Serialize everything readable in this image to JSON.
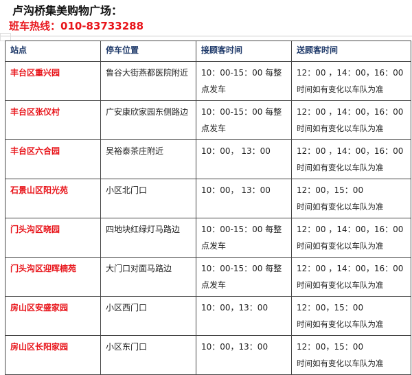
{
  "title": "卢沟桥集美购物广场：",
  "hotline": "班车热线：010-83733288",
  "headers": [
    "站点",
    "停车位置",
    "接顾客时间",
    "送顾客时间"
  ],
  "rows": [
    {
      "station": "丰台区重兴园",
      "location": "鲁谷大街燕都医院附近",
      "pickup": "10：00-15：00 每整点发车",
      "dropoff": "12：00 ，14：00，16：00",
      "note": "时间如有变化以车队为准"
    },
    {
      "station": "丰台区张仪村",
      "location": "广安康欣家园东侧路边",
      "pickup": "10：00-15：00 每整点发车",
      "dropoff": "12：00 ，14：00，16：00",
      "note": "时间如有变化以车队为准"
    },
    {
      "station": "丰台区六合园",
      "location": "吴裕泰茶庄附近",
      "pickup": "10：00， 13：00",
      "dropoff": "12：00 ，14：00，16：00",
      "note": "时间如有变化以车队为准"
    },
    {
      "station": "石景山区阳光苑",
      "location": "小区北门口",
      "pickup": "10：00， 13：00",
      "dropoff": "12：00，15：00",
      "note": "时间如有变化以车队为准"
    },
    {
      "station": "门头沟区晓园",
      "location": "四地块红绿灯马路边",
      "pickup": "10：00-15：00 每整点发车",
      "dropoff": "12：00 ，14：00，16：00",
      "note": "时间如有变化以车队为准"
    },
    {
      "station": "门头沟区迎晖楠苑",
      "location": "大门口对面马路边",
      "pickup": " 10：00-15：00 每整点发车",
      "dropoff": "12：00 ，14：00，16：00",
      "note": "时间如有变化以车队为准"
    },
    {
      "station": "房山区安盛家园",
      "location": "小区西门口",
      "pickup": "10：00，13：00",
      "dropoff": "12：00，15：00",
      "note": "时间如有变化以车队为准"
    },
    {
      "station": "房山区长阳家园",
      "location": "小区东门口",
      "pickup": "10：00，13：00",
      "dropoff": "12：00，15：00",
      "note": "时间如有变化以车队为准"
    }
  ]
}
